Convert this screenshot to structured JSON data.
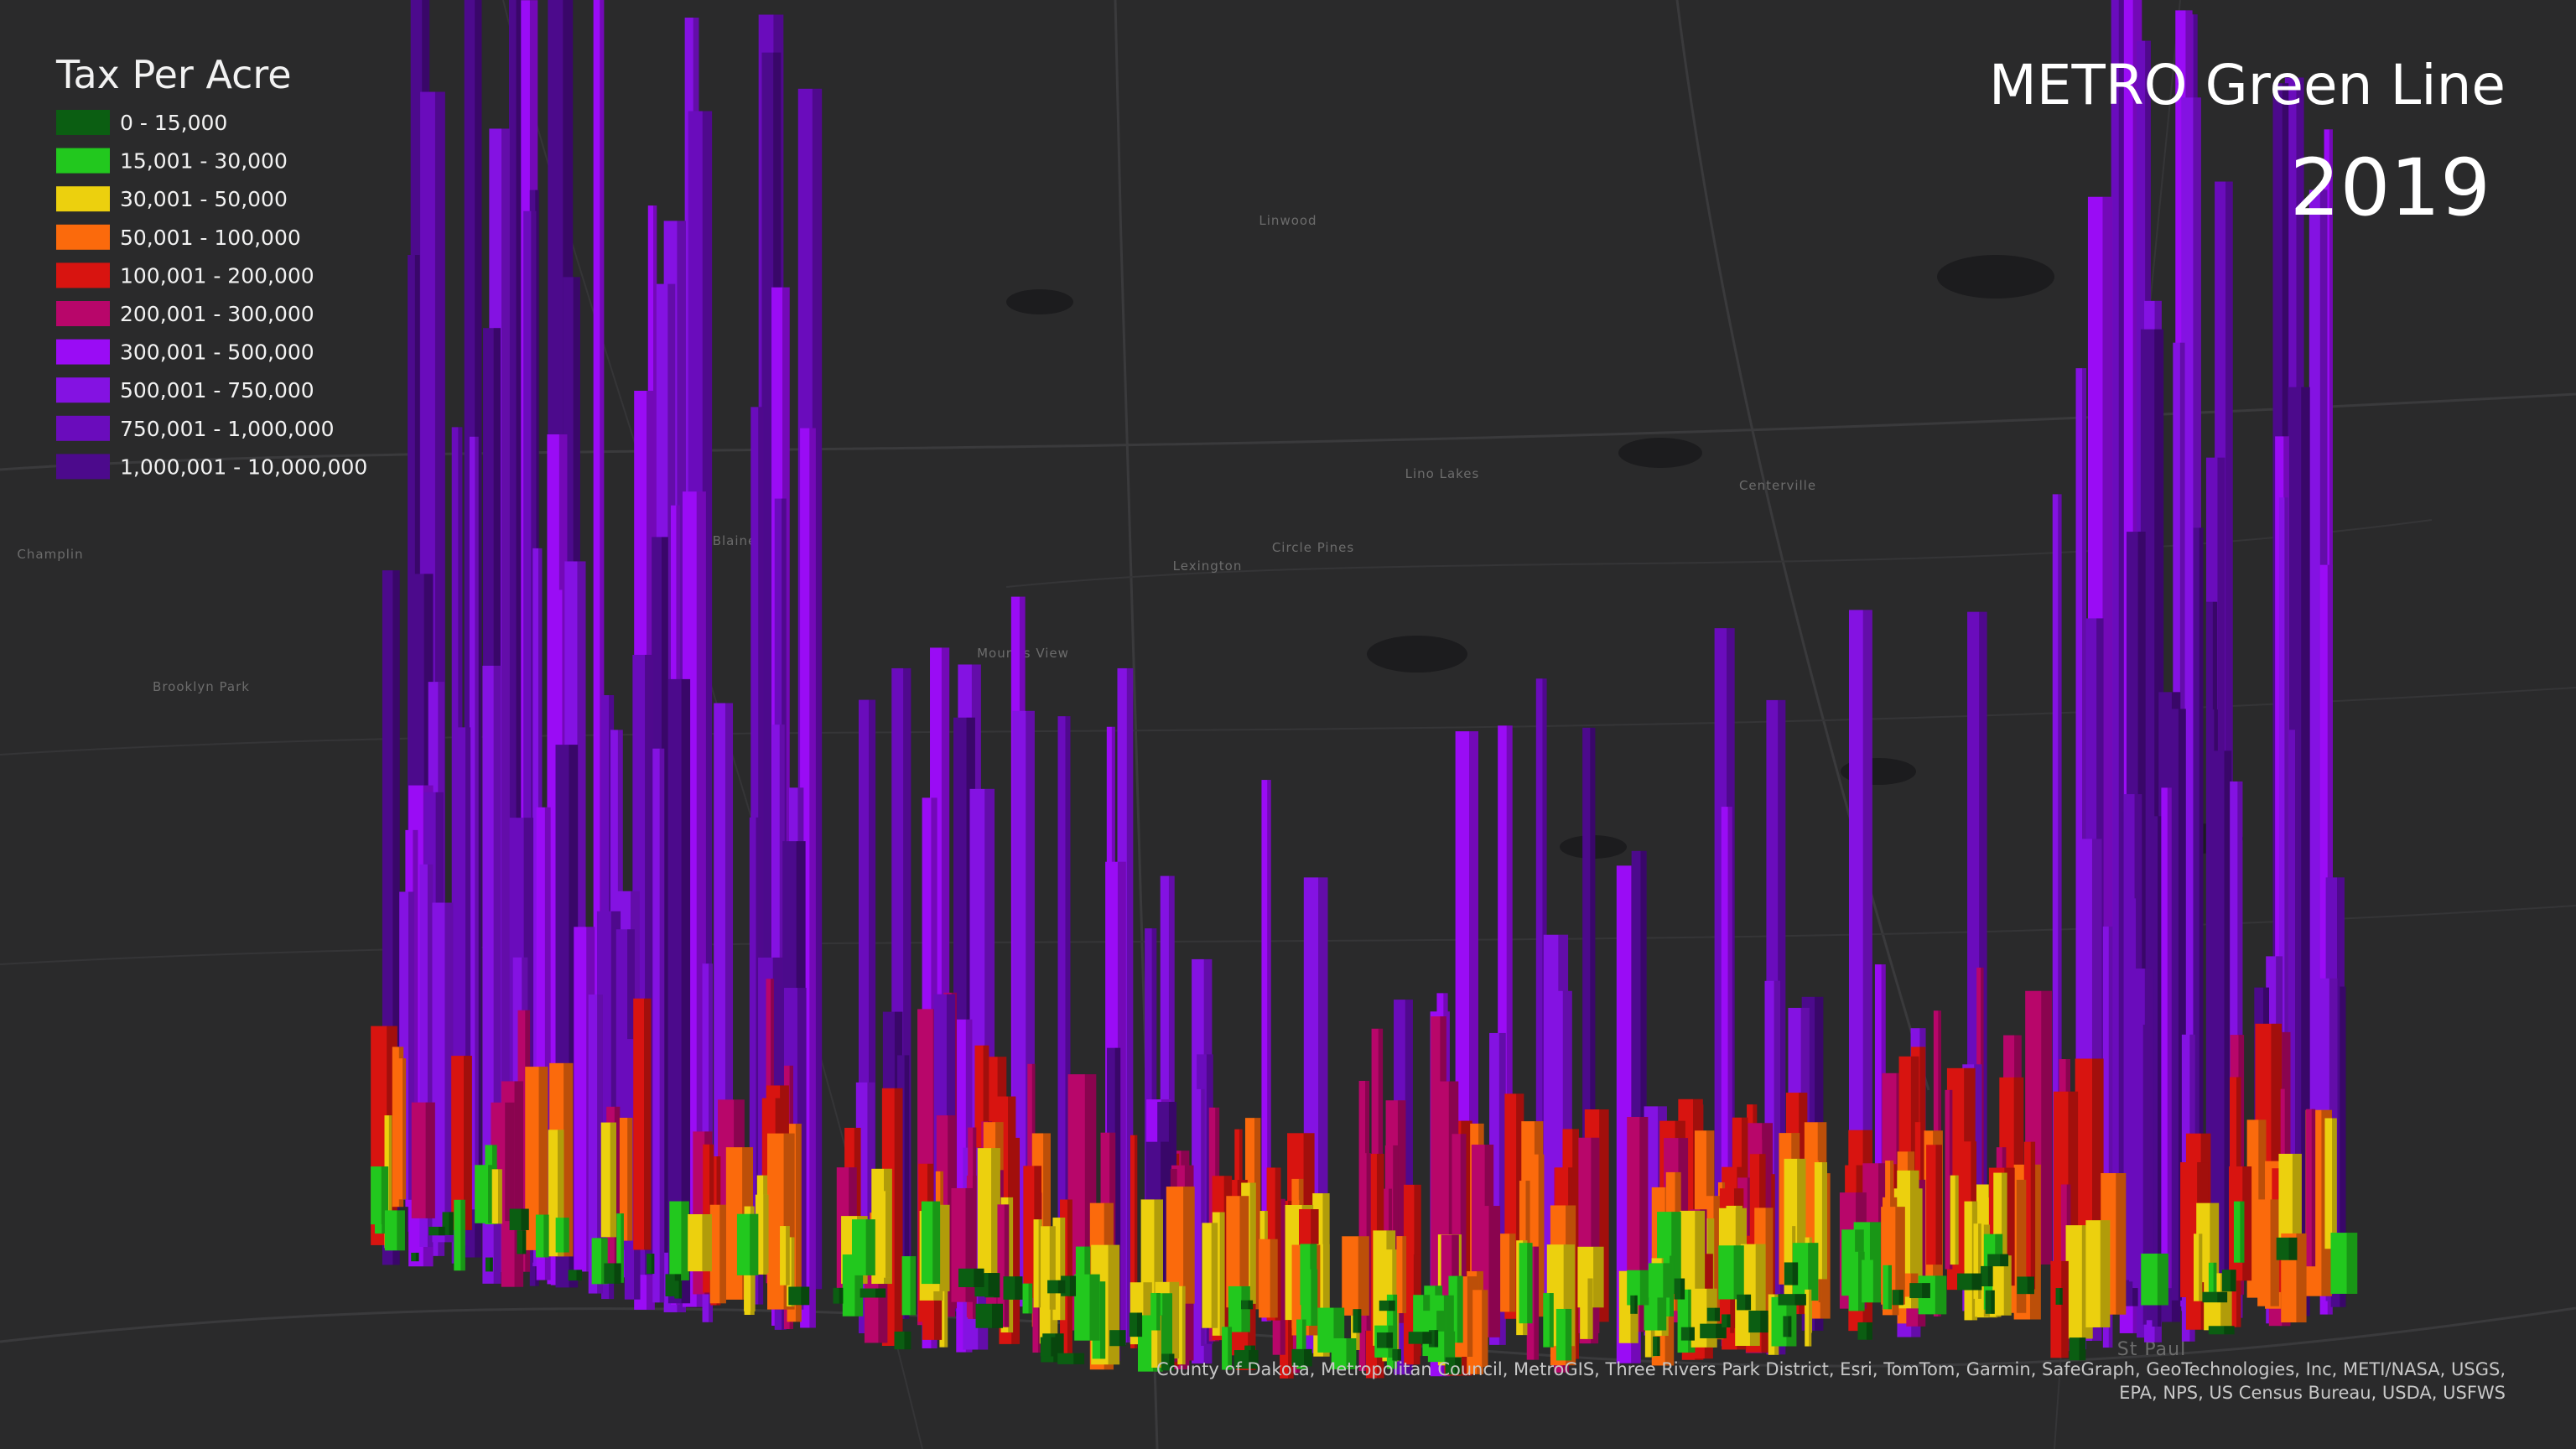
{
  "legend": {
    "title": "Tax Per Acre",
    "items": [
      {
        "label": "0 - 15,000",
        "color": "#0b5e12"
      },
      {
        "label": "15,001 - 30,000",
        "color": "#22c81e"
      },
      {
        "label": "30,001 - 50,000",
        "color": "#ecd00e"
      },
      {
        "label": "50,001 - 100,000",
        "color": "#fb6a0c"
      },
      {
        "label": "100,001 - 200,000",
        "color": "#d81410"
      },
      {
        "label": "200,001 - 300,000",
        "color": "#b8066a"
      },
      {
        "label": "300,001 - 500,000",
        "color": "#9a0cf5"
      },
      {
        "label": "500,001 - 750,000",
        "color": "#8412e2"
      },
      {
        "label": "750,001 - 1,000,000",
        "color": "#6a0cbc"
      },
      {
        "label": "1,000,001 - 10,000,000",
        "color": "#4c0a8c"
      }
    ]
  },
  "header": {
    "title": "METRO Green Line",
    "year": "2019"
  },
  "attribution": {
    "lines": [
      "County of Dakota, Metropolitan Council, MetroGIS, Three Rivers Park District, Esri, TomTom, Garmin, SafeGraph, GeoTechnologies, Inc, METI/NASA, USGS,",
      "EPA, NPS, US Census Bureau, USDA, USFWS"
    ]
  },
  "map_labels": [
    "Champlin",
    "Brooklyn Park",
    "Blaine",
    "Linwood",
    "Lino Lakes",
    "Circle Pines",
    "Centerville",
    "Lexington",
    "Mounds View",
    "St Paul"
  ]
}
